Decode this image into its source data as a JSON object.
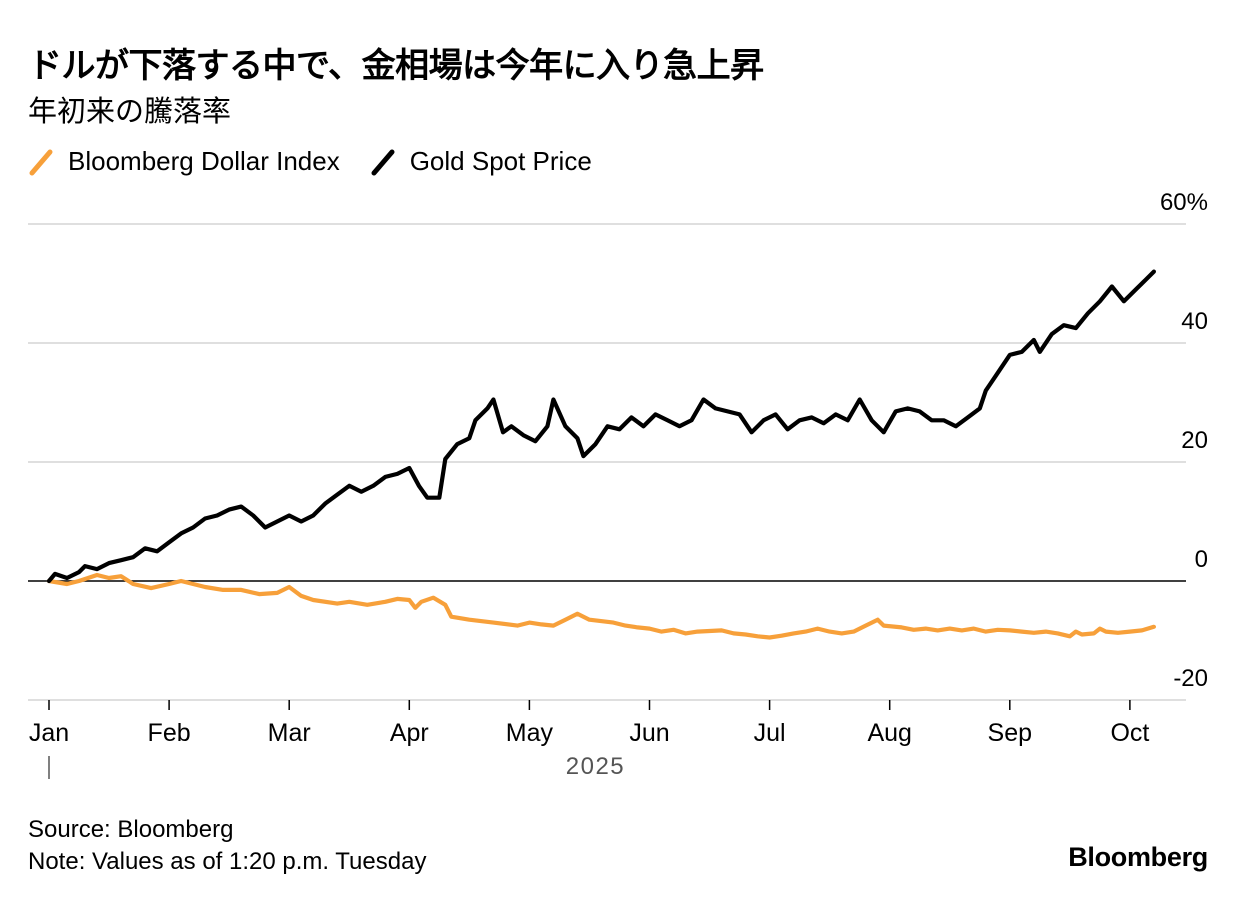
{
  "header": {
    "title": "ドルが下落する中で、金相場は今年に入り急上昇",
    "subtitle": "年初来の騰落率"
  },
  "legend": [
    {
      "label": "Bloomberg Dollar Index",
      "color": "#f7a03a"
    },
    {
      "label": "Gold Spot Price",
      "color": "#000000"
    }
  ],
  "chart_data": {
    "type": "line",
    "title": "ドルが下落する中で、金相場は今年に入り急上昇",
    "subtitle": "年初来の騰落率",
    "xlabel": "2025",
    "ylabel": "%",
    "ylim": [
      -20,
      60
    ],
    "yticks": [
      {
        "value": 60,
        "label": "60%"
      },
      {
        "value": 40,
        "label": "40"
      },
      {
        "value": 20,
        "label": "20"
      },
      {
        "value": 0,
        "label": "0"
      },
      {
        "value": -20,
        "label": "-20"
      }
    ],
    "xticks": [
      {
        "value": 0,
        "label": "Jan"
      },
      {
        "value": 1,
        "label": "Feb"
      },
      {
        "value": 2,
        "label": "Mar"
      },
      {
        "value": 3,
        "label": "Apr"
      },
      {
        "value": 4,
        "label": "May"
      },
      {
        "value": 5,
        "label": "Jun"
      },
      {
        "value": 6,
        "label": "Jul"
      },
      {
        "value": 7,
        "label": "Aug"
      },
      {
        "value": 8,
        "label": "Sep"
      },
      {
        "value": 9,
        "label": "Oct"
      }
    ],
    "x_unit": "months since Jan 1, 2025",
    "xlim": [
      0,
      9.3
    ],
    "year_label": "2025",
    "grid": true,
    "legend_position": "top-left",
    "series": [
      {
        "name": "Bloomberg Dollar Index",
        "color": "#f7a03a",
        "points": [
          [
            0,
            0
          ],
          [
            0.15,
            -0.5
          ],
          [
            0.25,
            0
          ],
          [
            0.4,
            1.0
          ],
          [
            0.5,
            0.5
          ],
          [
            0.6,
            0.8
          ],
          [
            0.7,
            -0.5
          ],
          [
            0.85,
            -1.2
          ],
          [
            1.0,
            -0.5
          ],
          [
            1.1,
            0
          ],
          [
            1.3,
            -1.0
          ],
          [
            1.45,
            -1.5
          ],
          [
            1.6,
            -1.5
          ],
          [
            1.75,
            -2.2
          ],
          [
            1.9,
            -2.0
          ],
          [
            2.0,
            -1.0
          ],
          [
            2.1,
            -2.5
          ],
          [
            2.2,
            -3.2
          ],
          [
            2.4,
            -3.8
          ],
          [
            2.5,
            -3.5
          ],
          [
            2.65,
            -4.0
          ],
          [
            2.8,
            -3.5
          ],
          [
            2.9,
            -3.0
          ],
          [
            3.0,
            -3.2
          ],
          [
            3.05,
            -4.5
          ],
          [
            3.1,
            -3.5
          ],
          [
            3.2,
            -2.8
          ],
          [
            3.3,
            -4.0
          ],
          [
            3.35,
            -6.0
          ],
          [
            3.5,
            -6.5
          ],
          [
            3.7,
            -7.0
          ],
          [
            3.9,
            -7.5
          ],
          [
            4.0,
            -7.0
          ],
          [
            4.1,
            -7.3
          ],
          [
            4.2,
            -7.5
          ],
          [
            4.3,
            -6.5
          ],
          [
            4.4,
            -5.5
          ],
          [
            4.5,
            -6.5
          ],
          [
            4.7,
            -7.0
          ],
          [
            4.8,
            -7.5
          ],
          [
            4.9,
            -7.8
          ],
          [
            5.0,
            -8.0
          ],
          [
            5.1,
            -8.5
          ],
          [
            5.2,
            -8.2
          ],
          [
            5.3,
            -8.8
          ],
          [
            5.4,
            -8.5
          ],
          [
            5.6,
            -8.3
          ],
          [
            5.7,
            -8.8
          ],
          [
            5.8,
            -9.0
          ],
          [
            5.9,
            -9.3
          ],
          [
            6.0,
            -9.5
          ],
          [
            6.1,
            -9.2
          ],
          [
            6.2,
            -8.8
          ],
          [
            6.3,
            -8.5
          ],
          [
            6.4,
            -8.0
          ],
          [
            6.5,
            -8.5
          ],
          [
            6.6,
            -8.8
          ],
          [
            6.7,
            -8.5
          ],
          [
            6.8,
            -7.5
          ],
          [
            6.9,
            -6.5
          ],
          [
            6.95,
            -7.5
          ],
          [
            7.1,
            -7.8
          ],
          [
            7.2,
            -8.2
          ],
          [
            7.3,
            -8.0
          ],
          [
            7.4,
            -8.3
          ],
          [
            7.5,
            -8.0
          ],
          [
            7.6,
            -8.3
          ],
          [
            7.7,
            -8.0
          ],
          [
            7.8,
            -8.5
          ],
          [
            7.9,
            -8.2
          ],
          [
            8.0,
            -8.3
          ],
          [
            8.1,
            -8.5
          ],
          [
            8.2,
            -8.7
          ],
          [
            8.3,
            -8.5
          ],
          [
            8.4,
            -8.8
          ],
          [
            8.5,
            -9.3
          ],
          [
            8.55,
            -8.5
          ],
          [
            8.6,
            -9.0
          ],
          [
            8.7,
            -8.8
          ],
          [
            8.75,
            -8.0
          ],
          [
            8.8,
            -8.5
          ],
          [
            8.9,
            -8.7
          ],
          [
            9.0,
            -8.5
          ],
          [
            9.1,
            -8.3
          ],
          [
            9.2,
            -7.7
          ]
        ]
      },
      {
        "name": "Gold Spot Price",
        "color": "#000000",
        "points": [
          [
            0,
            0
          ],
          [
            0.05,
            1.2
          ],
          [
            0.15,
            0.5
          ],
          [
            0.25,
            1.5
          ],
          [
            0.3,
            2.5
          ],
          [
            0.4,
            2.0
          ],
          [
            0.5,
            3.0
          ],
          [
            0.6,
            3.5
          ],
          [
            0.7,
            4.0
          ],
          [
            0.8,
            5.5
          ],
          [
            0.9,
            5.0
          ],
          [
            1.0,
            6.5
          ],
          [
            1.1,
            8.0
          ],
          [
            1.2,
            9.0
          ],
          [
            1.3,
            10.5
          ],
          [
            1.4,
            11.0
          ],
          [
            1.5,
            12.0
          ],
          [
            1.6,
            12.5
          ],
          [
            1.7,
            11.0
          ],
          [
            1.8,
            9.0
          ],
          [
            1.9,
            10.0
          ],
          [
            2.0,
            11.0
          ],
          [
            2.1,
            10.0
          ],
          [
            2.2,
            11.0
          ],
          [
            2.3,
            13.0
          ],
          [
            2.4,
            14.5
          ],
          [
            2.5,
            16.0
          ],
          [
            2.6,
            15.0
          ],
          [
            2.7,
            16.0
          ],
          [
            2.8,
            17.5
          ],
          [
            2.9,
            18.0
          ],
          [
            3.0,
            19.0
          ],
          [
            3.08,
            16.0
          ],
          [
            3.15,
            14.0
          ],
          [
            3.25,
            14.0
          ],
          [
            3.3,
            20.5
          ],
          [
            3.4,
            23.0
          ],
          [
            3.5,
            24.0
          ],
          [
            3.55,
            27.0
          ],
          [
            3.65,
            29.0
          ],
          [
            3.7,
            30.5
          ],
          [
            3.78,
            25.0
          ],
          [
            3.85,
            26.0
          ],
          [
            3.95,
            24.5
          ],
          [
            4.05,
            23.5
          ],
          [
            4.15,
            26.0
          ],
          [
            4.2,
            30.5
          ],
          [
            4.3,
            26.0
          ],
          [
            4.4,
            24.0
          ],
          [
            4.45,
            21.0
          ],
          [
            4.55,
            23.0
          ],
          [
            4.65,
            26.0
          ],
          [
            4.75,
            25.5
          ],
          [
            4.85,
            27.5
          ],
          [
            4.95,
            26.0
          ],
          [
            5.05,
            28.0
          ],
          [
            5.15,
            27.0
          ],
          [
            5.25,
            26.0
          ],
          [
            5.35,
            27.0
          ],
          [
            5.45,
            30.5
          ],
          [
            5.55,
            29.0
          ],
          [
            5.65,
            28.5
          ],
          [
            5.75,
            28.0
          ],
          [
            5.85,
            25.0
          ],
          [
            5.95,
            27.0
          ],
          [
            6.05,
            28.0
          ],
          [
            6.15,
            25.5
          ],
          [
            6.25,
            27.0
          ],
          [
            6.35,
            27.5
          ],
          [
            6.45,
            26.5
          ],
          [
            6.55,
            28.0
          ],
          [
            6.65,
            27.0
          ],
          [
            6.75,
            30.5
          ],
          [
            6.85,
            27.0
          ],
          [
            6.95,
            25.0
          ],
          [
            7.05,
            28.5
          ],
          [
            7.15,
            29.0
          ],
          [
            7.25,
            28.5
          ],
          [
            7.35,
            27.0
          ],
          [
            7.45,
            27.0
          ],
          [
            7.55,
            26.0
          ],
          [
            7.65,
            27.5
          ],
          [
            7.75,
            29.0
          ],
          [
            7.8,
            32.0
          ],
          [
            7.9,
            35.0
          ],
          [
            8.0,
            38.0
          ],
          [
            8.1,
            38.5
          ],
          [
            8.2,
            40.5
          ],
          [
            8.25,
            38.5
          ],
          [
            8.35,
            41.5
          ],
          [
            8.45,
            43.0
          ],
          [
            8.55,
            42.5
          ],
          [
            8.65,
            45.0
          ],
          [
            8.75,
            47.0
          ],
          [
            8.85,
            49.5
          ],
          [
            8.95,
            47.0
          ],
          [
            9.05,
            49.0
          ],
          [
            9.1,
            50.0
          ],
          [
            9.2,
            52.0
          ]
        ]
      }
    ]
  },
  "footer": {
    "source": "Source: Bloomberg",
    "note": "Note: Values as of 1:20 p.m. Tuesday",
    "brand": "Bloomberg"
  }
}
